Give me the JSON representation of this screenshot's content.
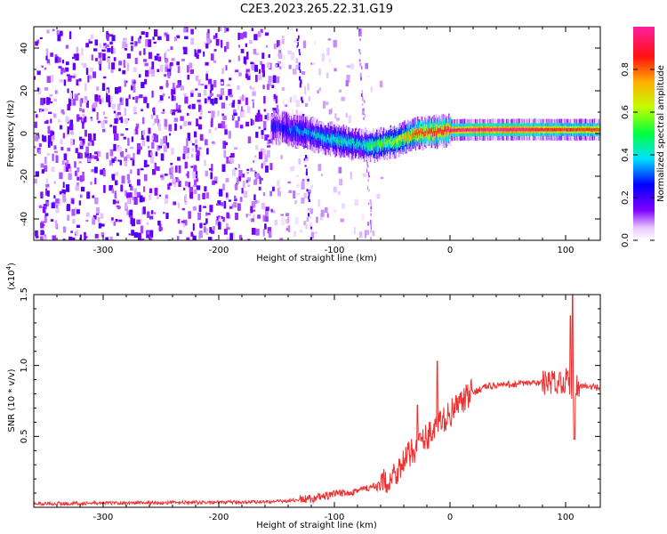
{
  "title": "C2E3.2023.265.22.31.G19",
  "chart_data": [
    {
      "type": "heatmap",
      "xlabel": "Height of straight line (km)",
      "ylabel": "Frequency (Hz)",
      "xlim": [
        -360,
        130
      ],
      "ylim": [
        -50,
        50
      ],
      "x_ticks": [
        -300,
        -200,
        -100,
        0,
        100
      ],
      "y_ticks": [
        -40,
        -20,
        0,
        20,
        40
      ],
      "colorbar": {
        "label": "Normalized spectral amplitude",
        "range": [
          0,
          1
        ],
        "ticks": [
          "0.0",
          "0.2",
          "0.4",
          "0.6",
          "0.8"
        ],
        "tick_values": [
          0,
          0.2,
          0.4,
          0.6,
          0.8
        ]
      },
      "ridge": {
        "x": [
          -150,
          -140,
          -130,
          -120,
          -110,
          -100,
          -90,
          -80,
          -70,
          -60,
          -50,
          -40,
          -30,
          -20,
          -10,
          0,
          20,
          40,
          60,
          80,
          100,
          130
        ],
        "freq": [
          3,
          2,
          1,
          0,
          -2,
          -3,
          -4,
          -5,
          -6,
          -5,
          -4,
          -2,
          0,
          0.5,
          1,
          1.5,
          1.8,
          1.8,
          1.8,
          1.8,
          1.8,
          1.8
        ],
        "amplitude": [
          0.25,
          0.3,
          0.35,
          0.35,
          0.4,
          0.45,
          0.45,
          0.4,
          0.5,
          0.55,
          0.6,
          0.7,
          0.8,
          0.85,
          0.88,
          0.92,
          0.97,
          0.97,
          0.97,
          0.9,
          0.85,
          0.85
        ]
      }
    },
    {
      "type": "line",
      "xlabel": "Height of straight line (km)",
      "ylabel": "SNR (10 * v/v)",
      "y_multiplier": "(x10",
      "y_multiplier_exp": "4",
      "y_multiplier_close": ")",
      "xlim": [
        -360,
        130
      ],
      "ylim": [
        0,
        1.5
      ],
      "x_ticks": [
        -300,
        -200,
        -100,
        0,
        100
      ],
      "y_ticks": [
        0.5,
        1.0,
        1.5
      ],
      "y_tick_labels": [
        "0.5",
        "1.0",
        "1.5"
      ],
      "series": [
        {
          "color": "#ee3030",
          "x": [
            -360,
            -300,
            -200,
            -150,
            -120,
            -100,
            -80,
            -60,
            -50,
            -40,
            -30,
            -20,
            -10,
            0,
            10,
            20,
            30,
            40,
            60,
            80,
            90,
            100,
            105,
            110,
            120,
            130
          ],
          "y": [
            0.025,
            0.03,
            0.035,
            0.04,
            0.06,
            0.09,
            0.12,
            0.15,
            0.22,
            0.32,
            0.42,
            0.5,
            0.58,
            0.66,
            0.74,
            0.81,
            0.85,
            0.86,
            0.87,
            0.88,
            0.88,
            0.9,
            0.85,
            0.86,
            0.85,
            0.84
          ]
        }
      ]
    }
  ]
}
